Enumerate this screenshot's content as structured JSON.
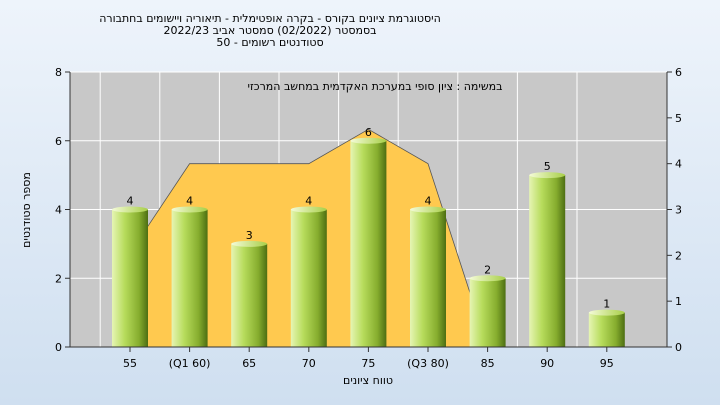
{
  "chart_data": {
    "type": "bar",
    "title_lines": [
      "היסטוגרמת ציונים בקורס - בקרה אופטימלית - תיאוריה ויישומים בחתבורה",
      "בסמסטר  (02/2022)  סמסטר אביב 2022/23",
      "סטודנטים רשומים - 50"
    ],
    "annotation": "במשימה : ציון סופי במערכת האקדמית במחשב המרכזי",
    "xlabel": "טווח ציונים",
    "ylabel": "מספר סטודנטים",
    "categories": [
      "55",
      "(Q1 60)",
      "65",
      "70",
      "75",
      "(Q3 80)",
      "85",
      "90",
      "95"
    ],
    "values": [
      4,
      4,
      3,
      4,
      6,
      4,
      2,
      5,
      1
    ],
    "ylim_left": [
      0,
      8
    ],
    "yticks_left": [
      0,
      2,
      4,
      6,
      8
    ],
    "ylim_right": [
      0,
      6
    ],
    "yticks_right": [
      0,
      1,
      2,
      3,
      4,
      5,
      6
    ],
    "distribution_curve": [
      {
        "x": 55,
        "y": 2.05
      },
      {
        "x": 60,
        "y": 4
      },
      {
        "x": 65,
        "y": 4
      },
      {
        "x": 70,
        "y": 4
      },
      {
        "x": 75,
        "y": 4.75
      },
      {
        "x": 80,
        "y": 4
      },
      {
        "x": 85,
        "y": 0
      }
    ],
    "grid": true,
    "colors": {
      "bar_light": "#d2ec8c",
      "bar_mid": "#9cc63c",
      "bar_dark": "#4d6e12",
      "area": "#ffc94f",
      "plot_bg": "#c8c8c8",
      "grid": "#ffffff"
    }
  }
}
